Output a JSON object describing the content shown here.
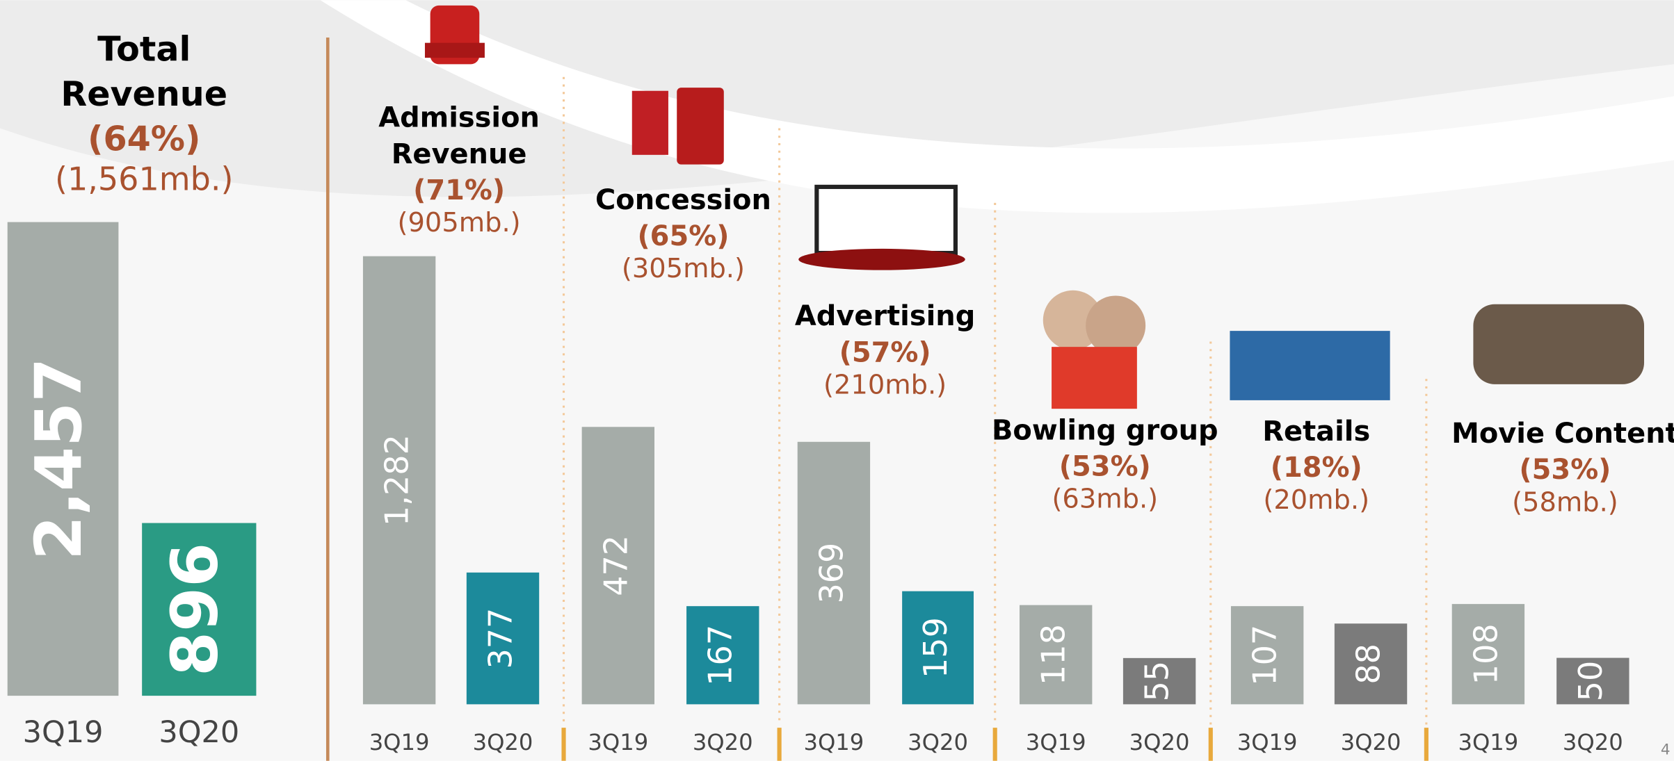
{
  "chart_data": [
    {
      "type": "bar",
      "title": [
        "Total",
        "Revenue"
      ],
      "change": "(64%)",
      "amount": "(1,561mb.)",
      "categories": [
        "3Q19",
        "3Q20"
      ],
      "values": [
        2457,
        896
      ],
      "value_labels": [
        "2,457",
        "896"
      ],
      "colors": [
        "#a5aca8",
        "#2a9b84"
      ]
    },
    {
      "type": "bar",
      "title": [
        "Admission",
        "Revenue"
      ],
      "change": "(71%)",
      "amount": "(905mb.)",
      "categories": [
        "3Q19",
        "3Q20"
      ],
      "values": [
        1282,
        377
      ],
      "value_labels": [
        "1,282",
        "377"
      ],
      "colors": [
        "#a5aca8",
        "#1c8a9b"
      ]
    },
    {
      "type": "bar",
      "title": [
        "Concession"
      ],
      "change": "(65%)",
      "amount": "(305mb.)",
      "categories": [
        "3Q19",
        "3Q20"
      ],
      "values": [
        472,
        167
      ],
      "colors": [
        "#a5aca8",
        "#1c8a9b"
      ]
    },
    {
      "type": "bar",
      "title": [
        "Advertising"
      ],
      "change": "(57%)",
      "amount": "(210mb.)",
      "categories": [
        "3Q19",
        "3Q20"
      ],
      "values": [
        369,
        159
      ],
      "colors": [
        "#a5aca8",
        "#1c8a9b"
      ]
    },
    {
      "type": "bar",
      "title": [
        "Bowling group"
      ],
      "change": "(53%)",
      "amount": "(63mb.)",
      "categories": [
        "3Q19",
        "3Q20"
      ],
      "values": [
        118,
        55
      ],
      "colors": [
        "#a5aca8",
        "#7b7b7b"
      ]
    },
    {
      "type": "bar",
      "title": [
        "Retails"
      ],
      "change": "(18%)",
      "amount": "(20mb.)",
      "categories": [
        "3Q19",
        "3Q20"
      ],
      "values": [
        107,
        88
      ],
      "colors": [
        "#a5aca8",
        "#7b7b7b"
      ]
    },
    {
      "type": "bar",
      "title": [
        "Movie Content"
      ],
      "change": "(53%)",
      "amount": "(58mb.)",
      "categories": [
        "3Q19",
        "3Q20"
      ],
      "values": [
        108,
        50
      ],
      "colors": [
        "#a5aca8",
        "#7b7b7b"
      ]
    }
  ],
  "page_number": "4"
}
